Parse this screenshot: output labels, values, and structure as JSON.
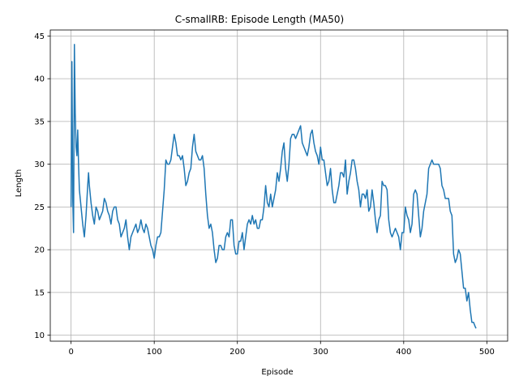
{
  "chart_data": {
    "type": "line",
    "title": "C-smallRB: Episode Length (MA50)",
    "xlabel": "Episode",
    "ylabel": "Length",
    "xlim": [
      -25,
      525
    ],
    "ylim": [
      9.3,
      45.7
    ],
    "xticks": [
      0,
      100,
      200,
      300,
      400,
      500
    ],
    "yticks": [
      10,
      15,
      20,
      25,
      30,
      35,
      40,
      45
    ],
    "grid": true,
    "series": [
      {
        "color": "#1f77b4",
        "points": [
          [
            0,
            25
          ],
          [
            1,
            42
          ],
          [
            2,
            26
          ],
          [
            3,
            22
          ],
          [
            4,
            44
          ],
          [
            5,
            36
          ],
          [
            6,
            32
          ],
          [
            7,
            31
          ],
          [
            8,
            34
          ],
          [
            9,
            30
          ],
          [
            10,
            27
          ],
          [
            11,
            26
          ],
          [
            12,
            25
          ],
          [
            14,
            23
          ],
          [
            16,
            21.5
          ],
          [
            18,
            24
          ],
          [
            20,
            27.5
          ],
          [
            21,
            29
          ],
          [
            22,
            27.5
          ],
          [
            24,
            25.5
          ],
          [
            26,
            24
          ],
          [
            28,
            23
          ],
          [
            30,
            25
          ],
          [
            32,
            24.5
          ],
          [
            34,
            23.5
          ],
          [
            36,
            24
          ],
          [
            38,
            24.5
          ],
          [
            40,
            26
          ],
          [
            42,
            25.5
          ],
          [
            44,
            24.5
          ],
          [
            46,
            24
          ],
          [
            48,
            23
          ],
          [
            50,
            24.5
          ],
          [
            52,
            25
          ],
          [
            54,
            25
          ],
          [
            56,
            23.5
          ],
          [
            58,
            23
          ],
          [
            60,
            21.5
          ],
          [
            62,
            22
          ],
          [
            64,
            22.5
          ],
          [
            66,
            23.5
          ],
          [
            68,
            21.5
          ],
          [
            70,
            20
          ],
          [
            72,
            21.5
          ],
          [
            74,
            22
          ],
          [
            76,
            22.5
          ],
          [
            78,
            23
          ],
          [
            80,
            22
          ],
          [
            82,
            22.5
          ],
          [
            84,
            23.5
          ],
          [
            86,
            22.5
          ],
          [
            88,
            22
          ],
          [
            90,
            23
          ],
          [
            92,
            22.5
          ],
          [
            94,
            21.5
          ],
          [
            96,
            20.5
          ],
          [
            98,
            20
          ],
          [
            100,
            19
          ],
          [
            102,
            20.5
          ],
          [
            104,
            21.5
          ],
          [
            106,
            21.5
          ],
          [
            108,
            22
          ],
          [
            110,
            24.5
          ],
          [
            112,
            27
          ],
          [
            114,
            30.5
          ],
          [
            116,
            30
          ],
          [
            118,
            30
          ],
          [
            120,
            30.5
          ],
          [
            122,
            32
          ],
          [
            124,
            33.5
          ],
          [
            126,
            32.5
          ],
          [
            128,
            31
          ],
          [
            130,
            31
          ],
          [
            132,
            30.5
          ],
          [
            134,
            31
          ],
          [
            136,
            29.5
          ],
          [
            138,
            27.5
          ],
          [
            140,
            28
          ],
          [
            142,
            29
          ],
          [
            144,
            29.5
          ],
          [
            146,
            32
          ],
          [
            148,
            33.5
          ],
          [
            150,
            31.5
          ],
          [
            152,
            31
          ],
          [
            154,
            30.5
          ],
          [
            156,
            30.5
          ],
          [
            158,
            31
          ],
          [
            160,
            29.5
          ],
          [
            162,
            26.5
          ],
          [
            164,
            24
          ],
          [
            166,
            22.5
          ],
          [
            168,
            23
          ],
          [
            170,
            22
          ],
          [
            172,
            20
          ],
          [
            174,
            18.5
          ],
          [
            176,
            19
          ],
          [
            178,
            20.5
          ],
          [
            180,
            20.5
          ],
          [
            182,
            20
          ],
          [
            184,
            20
          ],
          [
            186,
            21.5
          ],
          [
            188,
            22
          ],
          [
            190,
            21.5
          ],
          [
            192,
            23.5
          ],
          [
            194,
            23.5
          ],
          [
            196,
            20.5
          ],
          [
            198,
            19.5
          ],
          [
            200,
            19.5
          ],
          [
            202,
            21
          ],
          [
            204,
            21
          ],
          [
            206,
            22
          ],
          [
            208,
            20
          ],
          [
            210,
            21.5
          ],
          [
            212,
            23
          ],
          [
            214,
            23.5
          ],
          [
            216,
            23
          ],
          [
            218,
            24
          ],
          [
            220,
            23
          ],
          [
            222,
            23.5
          ],
          [
            224,
            22.5
          ],
          [
            226,
            22.5
          ],
          [
            228,
            23.5
          ],
          [
            230,
            23.5
          ],
          [
            232,
            25
          ],
          [
            234,
            27.5
          ],
          [
            236,
            25.5
          ],
          [
            238,
            25
          ],
          [
            240,
            26.5
          ],
          [
            242,
            25
          ],
          [
            244,
            26
          ],
          [
            246,
            27
          ],
          [
            248,
            29
          ],
          [
            250,
            28
          ],
          [
            252,
            29.5
          ],
          [
            254,
            31.5
          ],
          [
            256,
            32.5
          ],
          [
            258,
            29.5
          ],
          [
            260,
            28
          ],
          [
            262,
            30
          ],
          [
            264,
            33
          ],
          [
            266,
            33.5
          ],
          [
            268,
            33.5
          ],
          [
            270,
            33
          ],
          [
            272,
            33.5
          ],
          [
            274,
            34
          ],
          [
            276,
            34.5
          ],
          [
            278,
            32.5
          ],
          [
            280,
            32
          ],
          [
            282,
            31.5
          ],
          [
            284,
            31
          ],
          [
            286,
            32
          ],
          [
            288,
            33.5
          ],
          [
            290,
            34
          ],
          [
            292,
            32.5
          ],
          [
            294,
            31.5
          ],
          [
            296,
            31
          ],
          [
            298,
            30
          ],
          [
            300,
            32
          ],
          [
            302,
            30.5
          ],
          [
            304,
            30.5
          ],
          [
            306,
            29
          ],
          [
            308,
            27.5
          ],
          [
            310,
            28
          ],
          [
            312,
            29.5
          ],
          [
            314,
            27
          ],
          [
            316,
            25.5
          ],
          [
            318,
            25.5
          ],
          [
            320,
            26.5
          ],
          [
            322,
            27.5
          ],
          [
            324,
            29
          ],
          [
            326,
            29
          ],
          [
            328,
            28.5
          ],
          [
            330,
            30.5
          ],
          [
            332,
            26.5
          ],
          [
            334,
            28
          ],
          [
            336,
            29
          ],
          [
            338,
            30.5
          ],
          [
            340,
            30.5
          ],
          [
            342,
            29.5
          ],
          [
            344,
            28
          ],
          [
            346,
            27
          ],
          [
            348,
            25
          ],
          [
            350,
            26.5
          ],
          [
            352,
            26.5
          ],
          [
            354,
            26
          ],
          [
            356,
            27
          ],
          [
            358,
            24.5
          ],
          [
            360,
            25
          ],
          [
            362,
            27
          ],
          [
            364,
            25.5
          ],
          [
            366,
            23.5
          ],
          [
            368,
            22
          ],
          [
            370,
            23.5
          ],
          [
            372,
            24
          ],
          [
            374,
            28
          ],
          [
            376,
            27.5
          ],
          [
            378,
            27.5
          ],
          [
            380,
            27
          ],
          [
            382,
            23.5
          ],
          [
            384,
            22
          ],
          [
            386,
            21.5
          ],
          [
            388,
            22
          ],
          [
            390,
            22.5
          ],
          [
            392,
            22
          ],
          [
            394,
            21.5
          ],
          [
            396,
            20
          ],
          [
            398,
            22
          ],
          [
            400,
            22
          ],
          [
            402,
            25
          ],
          [
            404,
            24
          ],
          [
            406,
            23.5
          ],
          [
            408,
            22
          ],
          [
            410,
            23
          ],
          [
            412,
            26.5
          ],
          [
            414,
            27
          ],
          [
            416,
            26.5
          ],
          [
            418,
            24
          ],
          [
            420,
            21.5
          ],
          [
            422,
            22.5
          ],
          [
            424,
            24.5
          ],
          [
            426,
            25.5
          ],
          [
            428,
            26.5
          ],
          [
            430,
            29.5
          ],
          [
            432,
            30
          ],
          [
            434,
            30.5
          ],
          [
            436,
            30
          ],
          [
            438,
            30
          ],
          [
            440,
            30
          ],
          [
            442,
            30
          ],
          [
            444,
            29.5
          ],
          [
            446,
            27.5
          ],
          [
            448,
            27
          ],
          [
            450,
            26
          ],
          [
            452,
            26
          ],
          [
            454,
            26
          ],
          [
            456,
            24.5
          ],
          [
            458,
            24
          ],
          [
            460,
            19.5
          ],
          [
            462,
            18.5
          ],
          [
            464,
            19
          ],
          [
            466,
            20
          ],
          [
            468,
            19.5
          ],
          [
            470,
            17.5
          ],
          [
            472,
            15.5
          ],
          [
            474,
            15.5
          ],
          [
            476,
            14
          ],
          [
            478,
            15
          ],
          [
            480,
            13
          ],
          [
            482,
            11.5
          ],
          [
            484,
            11.5
          ],
          [
            486,
            11
          ],
          [
            487,
            10.8
          ]
        ]
      }
    ]
  }
}
